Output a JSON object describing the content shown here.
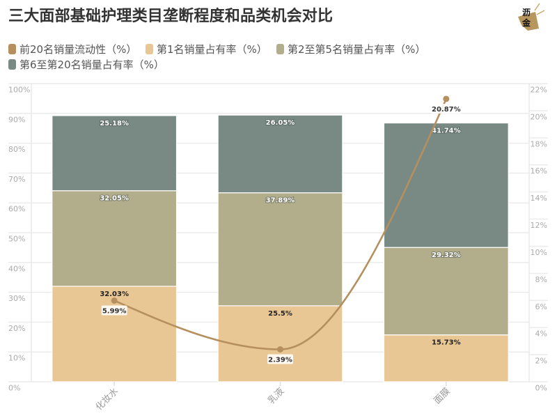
{
  "title": "三大面部基础护理类目垄断程度和品类机会对比",
  "logo": {
    "char_top": "沥",
    "char_bottom": "金",
    "color": "#B8975F"
  },
  "legend": [
    {
      "label": "前20名销量流动性（%）",
      "color": "#B5905E"
    },
    {
      "label": "第1名销量占有率（%）",
      "color": "#E8C794"
    },
    {
      "label": "第2至第5名销量占有率（%）",
      "color": "#B2AD8A"
    },
    {
      "label": "第6至第20名销量占有率（%）",
      "color": "#798A85"
    }
  ],
  "chart_data": {
    "type": "bar",
    "subtype": "stacked-bar-with-line",
    "title": "三大面部基础护理类目垄断程度和品类机会对比",
    "xlabel": "",
    "ylabel": "",
    "categories": [
      "化妆水",
      "乳液",
      "面膜"
    ],
    "series": [
      {
        "name": "第1名销量占有率（%）",
        "type": "bar",
        "axis": "left",
        "stack": "share",
        "values": [
          32.03,
          25.5,
          15.73
        ],
        "labels": [
          "32.03%",
          "25.5%",
          "15.73%"
        ],
        "color": "#E8C794",
        "label_tone": "dark"
      },
      {
        "name": "第2至第5名销量占有率（%）",
        "type": "bar",
        "axis": "left",
        "stack": "share",
        "values": [
          32.05,
          37.89,
          29.32
        ],
        "labels": [
          "32.05%",
          "37.89%",
          "29.32%"
        ],
        "color": "#B2AD8A",
        "label_tone": "light"
      },
      {
        "name": "第6至第20名销量占有率（%）",
        "type": "bar",
        "axis": "left",
        "stack": "share",
        "values": [
          25.18,
          26.05,
          41.74
        ],
        "labels": [
          "25.18%",
          "26.05%",
          "41.74%"
        ],
        "color": "#798A85",
        "label_tone": "light"
      },
      {
        "name": "前20名销量流动性（%）",
        "type": "line",
        "axis": "right",
        "smooth": true,
        "values": [
          5.99,
          2.39,
          20.87
        ],
        "labels": [
          "5.99%",
          "2.39%",
          "20.87%"
        ],
        "color": "#B5905E"
      }
    ],
    "y_left": {
      "ylim": [
        0,
        100
      ],
      "ticks": [
        0,
        10,
        20,
        30,
        40,
        50,
        60,
        70,
        80,
        90,
        100
      ],
      "tick_labels": [
        "0%",
        "10%",
        "20%",
        "30%",
        "40%",
        "50%",
        "60%",
        "70%",
        "80%",
        "90%",
        "100%"
      ]
    },
    "y_right": {
      "ylim": [
        0,
        22
      ],
      "ticks": [
        0,
        2,
        4,
        6,
        8,
        10,
        12,
        14,
        16,
        18,
        20,
        22
      ],
      "tick_labels": [
        "0%",
        "2%",
        "4%",
        "6%",
        "8%",
        "10%",
        "12%",
        "14%",
        "16%",
        "18%",
        "20%",
        "22%"
      ]
    },
    "grid": true,
    "legend_position": "top-left"
  }
}
